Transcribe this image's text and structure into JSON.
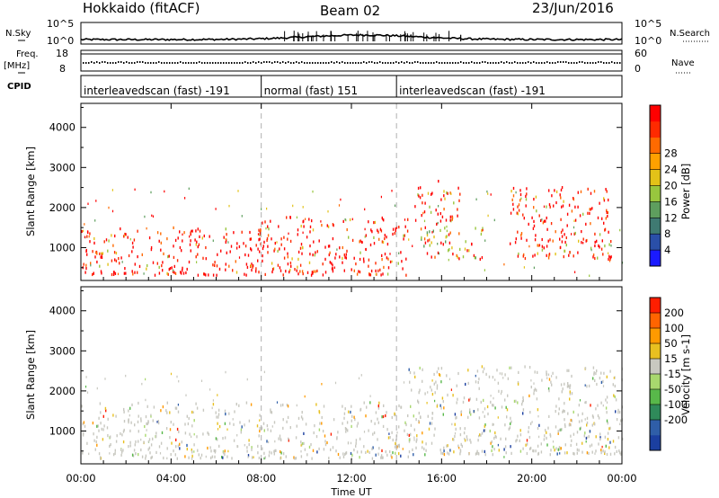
{
  "header": {
    "station": "Hokkaido (fitACF)",
    "beam": "Beam 02",
    "date": "23/Jun/2016"
  },
  "side_labels": {
    "nsky": "N.Sky",
    "freq_top": "Freq.",
    "freq_unit": "[MHz]",
    "cpid": "CPID",
    "nsearch": "N.Search",
    "nave": "Nave"
  },
  "noise_panel": {
    "left_ticks": [
      "10^5",
      "10^0"
    ],
    "right_ticks": [
      "10^5",
      "10^0"
    ]
  },
  "freq_panel": {
    "left_ticks": [
      "18",
      "8"
    ],
    "right_ticks": [
      "60",
      "0"
    ]
  },
  "cpid_segments": [
    {
      "label": "interleavedscan (fast) -191",
      "start_h": 0,
      "end_h": 8
    },
    {
      "label": "normal (fast) 151",
      "start_h": 8,
      "end_h": 14
    },
    {
      "label": "interleavedscan (fast) -191",
      "start_h": 14,
      "end_h": 24
    }
  ],
  "chart_data": [
    {
      "type": "heatmap",
      "name": "power",
      "ylabel": "Slant Range [km]",
      "xlabel": "Time UT",
      "xlim_hours": [
        0,
        24
      ],
      "ylim_km": [
        180,
        4600
      ],
      "y_ticks": [
        1000,
        2000,
        3000,
        4000
      ],
      "x_tick_labels": [
        "00:00",
        "04:00",
        "08:00",
        "12:00",
        "16:00",
        "20:00",
        "00:00"
      ],
      "colorbar": {
        "label": "Power [dB]",
        "tick_labels": [
          "4",
          "8",
          "12",
          "16",
          "20",
          "24",
          "28"
        ],
        "colors": [
          "#1a1aff",
          "#2a4fa8",
          "#3f7a72",
          "#5e9e5e",
          "#98c63e",
          "#e3c218",
          "#ffa000",
          "#ff6a00",
          "#ff2a00",
          "#ff0000"
        ]
      },
      "echo_regions": [
        {
          "t0": 0.0,
          "t1": 8.2,
          "r0": 300,
          "r1": 1500,
          "level": "strong"
        },
        {
          "t0": 8.0,
          "t1": 14.5,
          "r0": 300,
          "r1": 1750,
          "level": "strong"
        },
        {
          "t0": 15.0,
          "t1": 17.8,
          "r0": 700,
          "r1": 1600,
          "level": "mixed"
        },
        {
          "t0": 14.8,
          "t1": 16.8,
          "r0": 1650,
          "r1": 2650,
          "level": "strong"
        },
        {
          "t0": 19.0,
          "t1": 23.5,
          "r0": 700,
          "r1": 2500,
          "level": "strong"
        }
      ]
    },
    {
      "type": "heatmap",
      "name": "velocity",
      "ylabel": "Slant Range [km]",
      "xlabel": "Time UT",
      "xlim_hours": [
        0,
        24
      ],
      "ylim_km": [
        180,
        4600
      ],
      "y_ticks": [
        1000,
        2000,
        3000,
        4000
      ],
      "x_tick_labels": [
        "00:00",
        "04:00",
        "08:00",
        "12:00",
        "16:00",
        "20:00",
        "00:00"
      ],
      "colorbar": {
        "label": "Velocity [m s-1]",
        "tick_labels": [
          "200",
          "100",
          "50",
          "15",
          "-15",
          "-50",
          "-100",
          "-200"
        ],
        "colors": [
          "#1b3fa0",
          "#2f5ea8",
          "#2f8a5a",
          "#58b84a",
          "#a8d86e",
          "#c8c8c0",
          "#e8c020",
          "#ff9a00",
          "#ff6400",
          "#ff1e00"
        ]
      },
      "echo_regions": [
        {
          "t0": 0.0,
          "t1": 14.5,
          "r0": 300,
          "r1": 1700,
          "level": "ground_scatter"
        },
        {
          "t0": 14.5,
          "t1": 24.0,
          "r0": 400,
          "r1": 2600,
          "level": "ground_scatter"
        }
      ]
    }
  ]
}
